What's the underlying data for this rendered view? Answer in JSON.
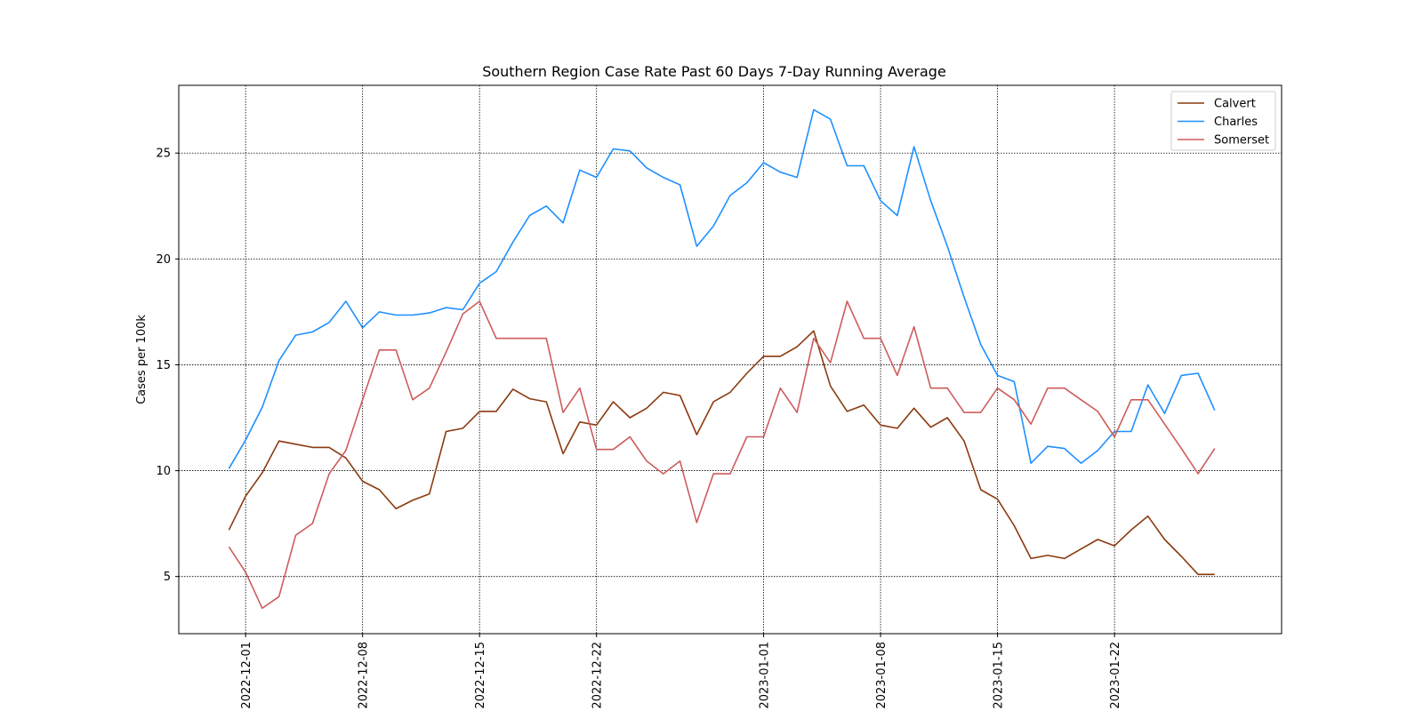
{
  "chart_data": {
    "type": "line",
    "title": "Southern Region Case Rate  Past 60 Days 7-Day Running Average",
    "xlabel": "",
    "ylabel": "Cases per 100k",
    "x_start": "2022-11-30",
    "x_tick_labels": [
      "2022-12-01",
      "2022-12-08",
      "2022-12-15",
      "2022-12-22",
      "2023-01-01",
      "2023-01-08",
      "2023-01-15",
      "2023-01-22"
    ],
    "x_range": [
      "2022-11-27",
      "2023-02-01"
    ],
    "y_ticks": [
      5,
      10,
      15,
      20,
      25
    ],
    "ylim": [
      2.3,
      28.2
    ],
    "grid": true,
    "legend_position": "top-right",
    "series": [
      {
        "name": "Calvert",
        "color": "#8B3A0F",
        "values": [
          7.2,
          8.8,
          9.9,
          11.4,
          11.25,
          11.1,
          11.1,
          10.6,
          9.5,
          9.1,
          8.2,
          8.6,
          8.9,
          11.85,
          12.0,
          12.8,
          12.8,
          13.85,
          13.4,
          13.25,
          10.8,
          12.3,
          12.15,
          13.25,
          12.5,
          12.95,
          13.7,
          13.55,
          11.7,
          13.25,
          13.7,
          14.6,
          15.4,
          15.4,
          15.85,
          16.6,
          14.0,
          12.8,
          13.1,
          12.15,
          12.0,
          12.95,
          12.05,
          12.5,
          11.4,
          9.1,
          8.65,
          7.4,
          5.85,
          6.0,
          5.85,
          6.3,
          6.75,
          6.45,
          7.2,
          7.85,
          6.75,
          5.95,
          5.1,
          5.1
        ]
      },
      {
        "name": "Charles",
        "color": "#1E90FF",
        "values": [
          10.1,
          11.45,
          13.0,
          15.2,
          16.4,
          16.55,
          17.0,
          18.0,
          16.75,
          17.5,
          17.35,
          17.35,
          17.45,
          17.7,
          17.6,
          18.85,
          19.4,
          20.8,
          22.05,
          22.5,
          21.7,
          24.2,
          23.85,
          25.2,
          25.1,
          24.3,
          23.85,
          23.5,
          20.6,
          21.55,
          23.0,
          23.6,
          24.55,
          24.1,
          23.85,
          27.05,
          26.6,
          24.4,
          24.4,
          22.75,
          22.05,
          25.3,
          22.75,
          20.6,
          18.2,
          15.95,
          14.5,
          14.2,
          10.35,
          11.15,
          11.05,
          10.35,
          10.95,
          11.85,
          11.85,
          14.05,
          12.7,
          14.5,
          14.6,
          12.85
        ]
      },
      {
        "name": "Somerset",
        "color": "#CD5C5C",
        "values": [
          6.4,
          5.2,
          3.5,
          4.05,
          6.95,
          7.5,
          9.85,
          10.95,
          13.35,
          15.7,
          15.7,
          13.35,
          13.9,
          15.6,
          17.4,
          18.0,
          16.25,
          16.25,
          16.25,
          16.25,
          12.75,
          13.9,
          11.0,
          11.0,
          11.6,
          10.45,
          9.85,
          10.45,
          7.55,
          9.85,
          9.85,
          11.6,
          11.6,
          13.9,
          12.75,
          16.25,
          15.1,
          18.0,
          16.25,
          16.25,
          14.5,
          16.8,
          13.9,
          13.9,
          12.75,
          12.75,
          13.9,
          13.35,
          12.2,
          13.9,
          13.9,
          13.35,
          12.8,
          11.6,
          13.35,
          13.35,
          12.2,
          11.05,
          9.85,
          11.05
        ]
      }
    ]
  }
}
